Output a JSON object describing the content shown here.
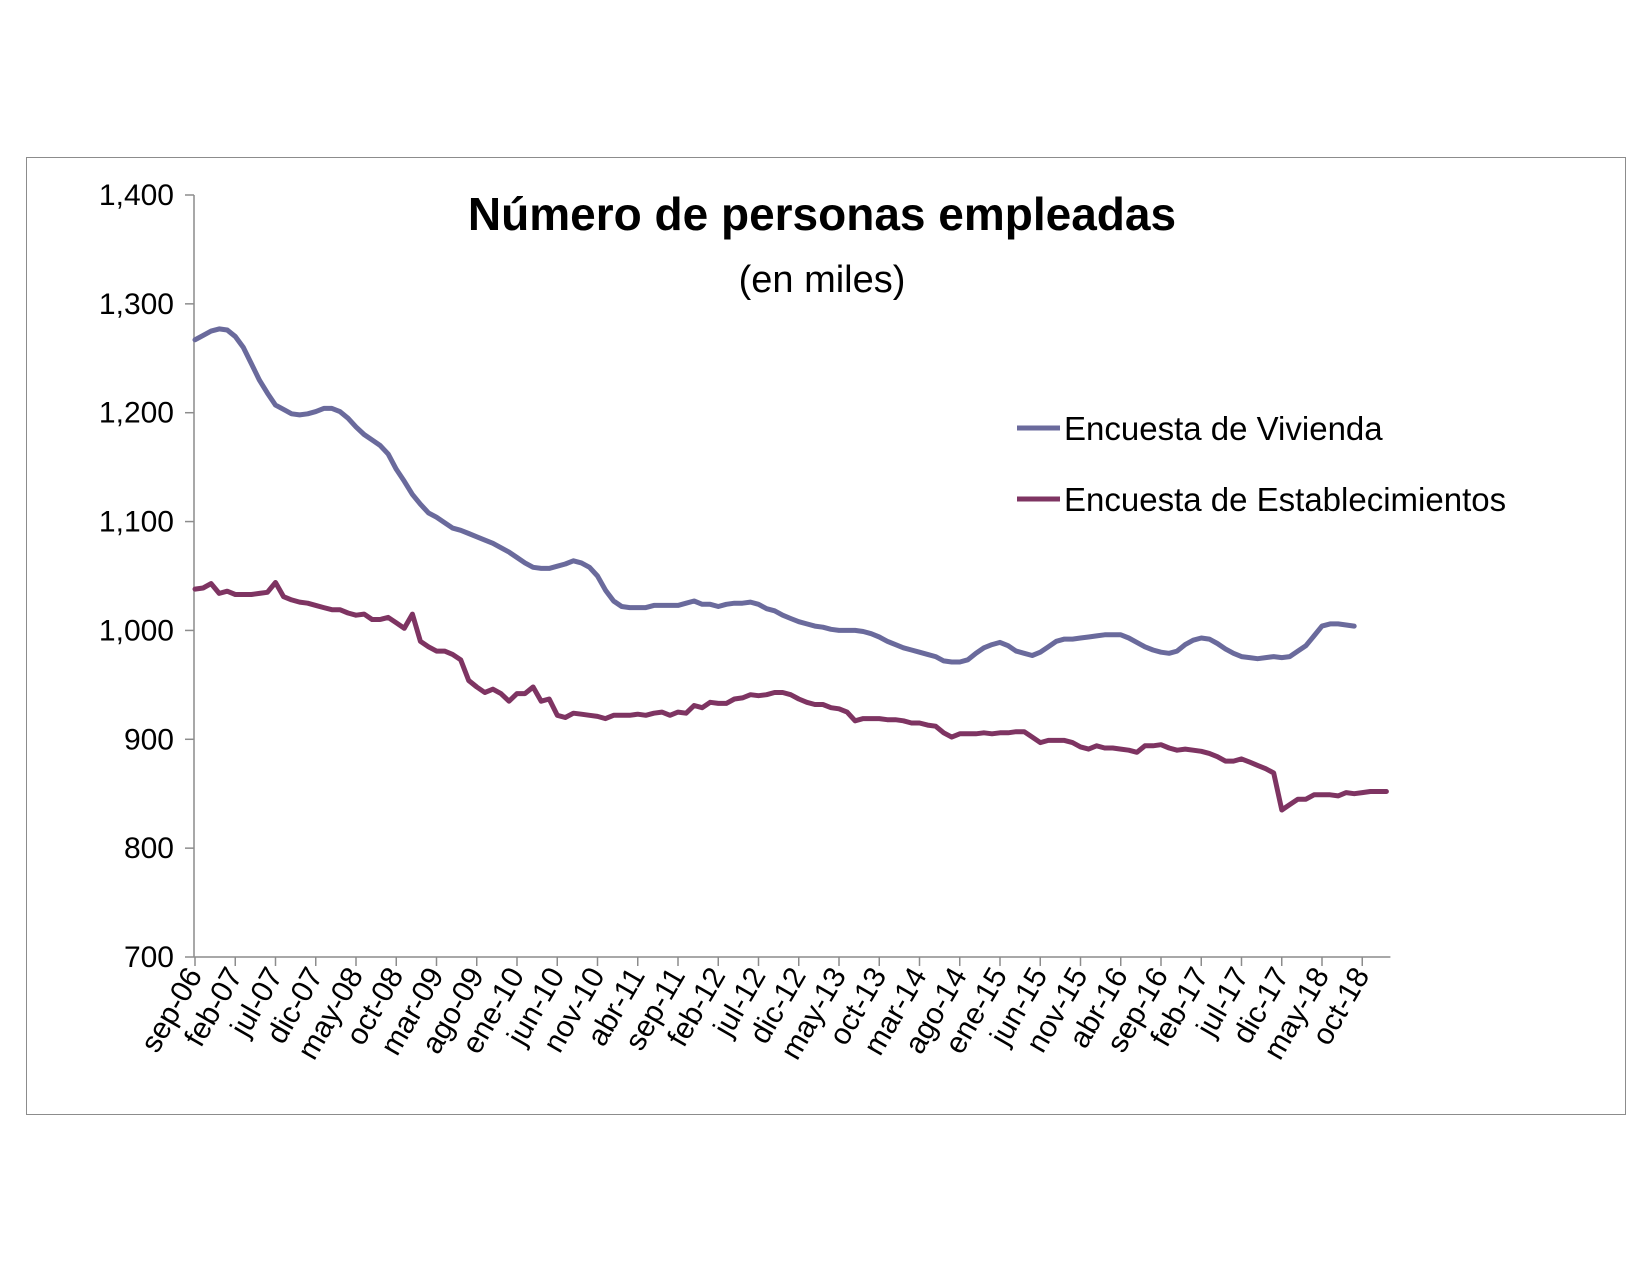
{
  "chart_data": {
    "type": "line",
    "title": "Número de personas empleadas",
    "subtitle": "(en miles)",
    "xlabel": "",
    "ylabel": "",
    "ylim": [
      700,
      1400
    ],
    "yticks": [
      "700",
      "800",
      "900",
      "1,000",
      "1,100",
      "1,200",
      "1,300",
      "1,400"
    ],
    "ytick_values": [
      700,
      800,
      900,
      1000,
      1100,
      1200,
      1300,
      1400
    ],
    "xtick_labels": [
      "sep-06",
      "feb-07",
      "jul-07",
      "dic-07",
      "may-08",
      "oct-08",
      "mar-09",
      "ago-09",
      "ene-10",
      "jun-10",
      "nov-10",
      "abr-11",
      "sep-11",
      "feb-12",
      "jul-12",
      "dic-12",
      "may-13",
      "oct-13",
      "mar-14",
      "ago-14",
      "ene-15",
      "jun-15",
      "nov-15",
      "abr-16",
      "sep-16",
      "feb-17",
      "jul-17",
      "dic-17",
      "may-18",
      "oct-18"
    ],
    "x_start": "sep-06",
    "x_end": "nov-18",
    "legend_position": "right",
    "grid": false,
    "series": [
      {
        "name": "Encuesta de Vivienda",
        "color": "#6a6a9c",
        "values": [
          1267,
          1271,
          1275,
          1277,
          1276,
          1270,
          1260,
          1245,
          1230,
          1218,
          1207,
          1203,
          1199,
          1198,
          1199,
          1201,
          1204,
          1204,
          1201,
          1195,
          1187,
          1180,
          1175,
          1170,
          1162,
          1148,
          1137,
          1125,
          1116,
          1108,
          1104,
          1099,
          1094,
          1092,
          1089,
          1086,
          1083,
          1080,
          1076,
          1072,
          1067,
          1062,
          1058,
          1057,
          1057,
          1059,
          1061,
          1064,
          1062,
          1058,
          1050,
          1037,
          1027,
          1022,
          1021,
          1021,
          1021,
          1023,
          1023,
          1023,
          1023,
          1025,
          1027,
          1024,
          1024,
          1022,
          1024,
          1025,
          1025,
          1026,
          1024,
          1020,
          1018,
          1014,
          1011,
          1008,
          1006,
          1004,
          1003,
          1001,
          1000,
          1000,
          1000,
          999,
          997,
          994,
          990,
          987,
          984,
          982,
          980,
          978,
          976,
          972,
          971,
          971,
          973,
          979,
          984,
          987,
          989,
          986,
          981,
          979,
          977,
          980,
          985,
          990,
          992,
          992,
          993,
          994,
          995,
          996,
          996,
          996,
          993,
          989,
          985,
          982,
          980,
          979,
          981,
          987,
          991,
          993,
          992,
          988,
          983,
          979,
          976,
          975,
          974,
          975,
          976,
          975,
          976,
          981,
          986,
          995,
          1004,
          1006,
          1006,
          1005,
          1004
        ]
      },
      {
        "name": "Encuesta de Establecimientos",
        "color": "#7e3462",
        "values": [
          1038,
          1039,
          1043,
          1034,
          1036,
          1033,
          1033,
          1033,
          1034,
          1035,
          1044,
          1031,
          1028,
          1026,
          1025,
          1023,
          1021,
          1019,
          1019,
          1016,
          1014,
          1015,
          1010,
          1010,
          1012,
          1007,
          1002,
          1015,
          990,
          985,
          981,
          981,
          978,
          973,
          954,
          948,
          943,
          946,
          942,
          935,
          942,
          942,
          948,
          935,
          937,
          922,
          920,
          924,
          923,
          922,
          921,
          919,
          922,
          922,
          922,
          923,
          922,
          924,
          925,
          922,
          925,
          924,
          931,
          929,
          934,
          933,
          933,
          937,
          938,
          941,
          940,
          941,
          943,
          943,
          941,
          937,
          934,
          932,
          932,
          929,
          928,
          925,
          917,
          919,
          919,
          919,
          918,
          918,
          917,
          915,
          915,
          913,
          912,
          906,
          902,
          905,
          905,
          905,
          906,
          905,
          906,
          906,
          907,
          907,
          902,
          897,
          899,
          899,
          899,
          897,
          893,
          891,
          894,
          892,
          892,
          891,
          890,
          888,
          894,
          894,
          895,
          892,
          890,
          891,
          890,
          889,
          887,
          884,
          880,
          880,
          882,
          879,
          876,
          873,
          869,
          835,
          840,
          845,
          845,
          849,
          849,
          849,
          848,
          851,
          850,
          851,
          852,
          852,
          852
        ]
      }
    ]
  }
}
